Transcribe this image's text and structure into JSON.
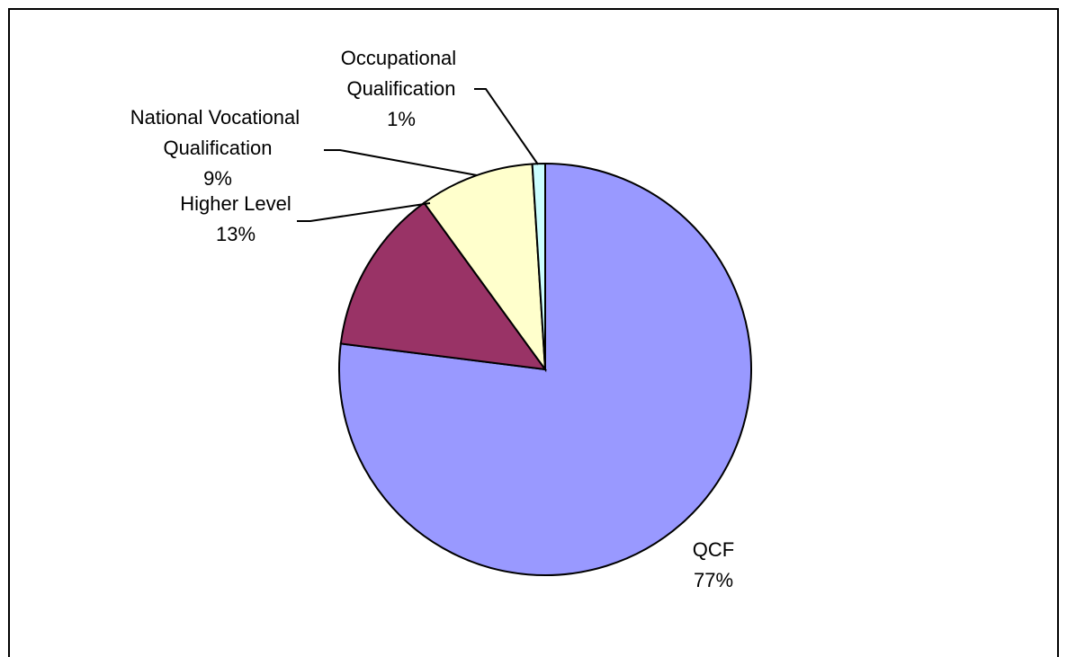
{
  "chart_data": {
    "type": "pie",
    "categories": [
      "QCF",
      "Higher Level",
      "National Vocational Qualification",
      "Occupational Qualification"
    ],
    "values": [
      77,
      13,
      9,
      1
    ],
    "value_labels": [
      "77%",
      "13%",
      "9%",
      "1%"
    ],
    "colors": [
      "#9999ff",
      "#993366",
      "#ffffcc",
      "#ccffff"
    ]
  }
}
